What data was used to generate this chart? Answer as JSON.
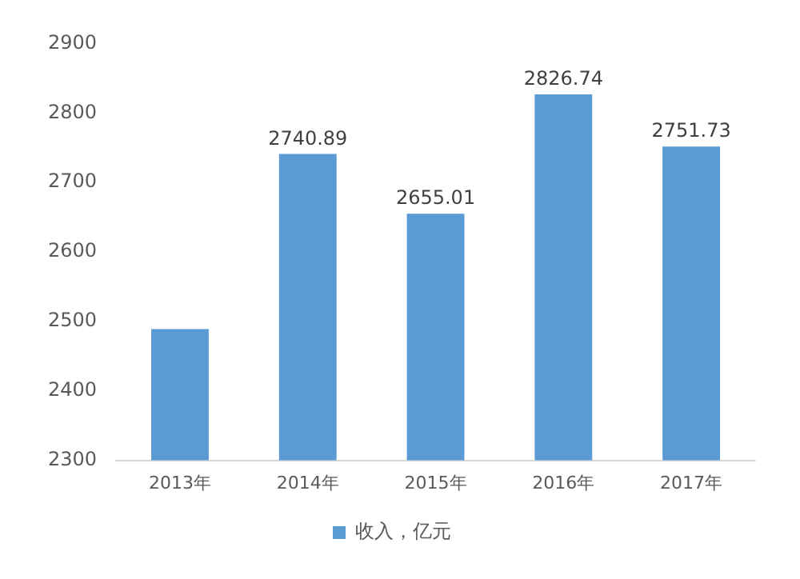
{
  "chart_data": {
    "type": "bar",
    "categories": [
      "2013年",
      "2014年",
      "2015年",
      "2016年",
      "2017年"
    ],
    "series": [
      {
        "name": "收入，亿元",
        "color": "#5b9bd5",
        "values": [
          2489,
          2740.89,
          2655.01,
          2826.74,
          2751.73
        ]
      }
    ],
    "value_labels": [
      null,
      "2740.89",
      "2655.01",
      "2826.74",
      "2751.73"
    ],
    "ylim": [
      2300,
      2900
    ],
    "yticks": [
      2300,
      2400,
      2500,
      2600,
      2700,
      2800,
      2900
    ],
    "grid": false,
    "legend": "bottom"
  }
}
